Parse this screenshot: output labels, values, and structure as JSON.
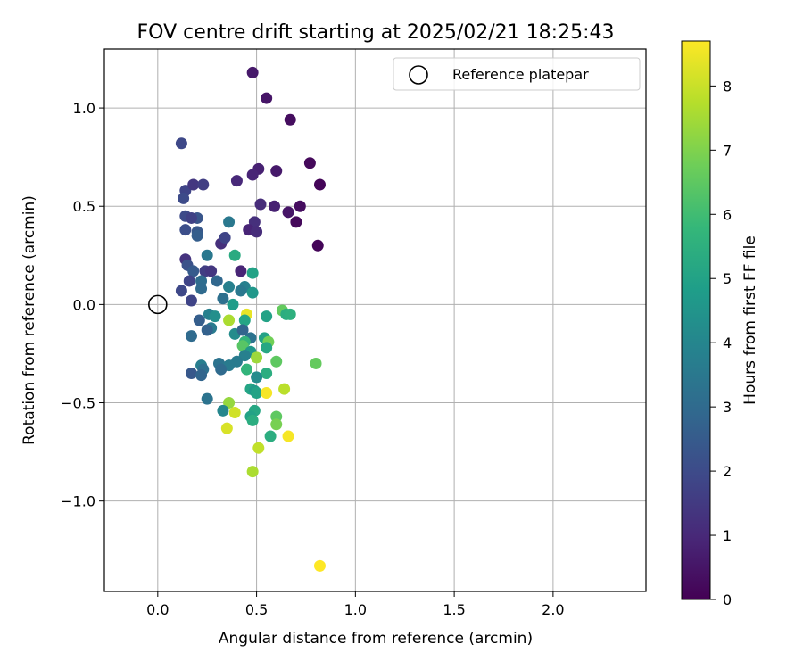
{
  "chart_data": {
    "type": "scatter",
    "title": "FOV centre drift starting at 2025/02/21 18:25:43",
    "xlabel": "Angular distance from reference (arcmin)",
    "ylabel": "Rotation from reference (arcmin)",
    "xlim": [
      -0.27,
      2.47
    ],
    "ylim": [
      -1.46,
      1.3
    ],
    "xticks": [
      "0.0",
      "0.5",
      "1.0",
      "1.5",
      "2.0"
    ],
    "xtick_values": [
      0,
      0.5,
      1.0,
      1.5,
      2.0
    ],
    "yticks": [
      "1.0",
      "0.5",
      "0.0",
      "−0.5",
      "−1.0"
    ],
    "ytick_values": [
      1.0,
      0.5,
      0.0,
      -0.5,
      -1.0
    ],
    "grid": true,
    "legend": {
      "position": "top-right",
      "entries": [
        "Reference platepar"
      ]
    },
    "colorbar": {
      "label": "Hours from first FF file",
      "range": [
        0,
        8.7
      ],
      "ticks": [
        "0",
        "1",
        "2",
        "3",
        "4",
        "5",
        "6",
        "7",
        "8"
      ],
      "tick_values": [
        0,
        1,
        2,
        3,
        4,
        5,
        6,
        7,
        8
      ],
      "colormap": "viridis",
      "colors": [
        "#440154",
        "#482878",
        "#3e4989",
        "#31688e",
        "#26828e",
        "#1f9e89",
        "#35b779",
        "#6ece58",
        "#b5de2b",
        "#fde725"
      ]
    },
    "reference_point": {
      "x": 0.0,
      "y": 0.0
    },
    "points": [
      {
        "x": 0.48,
        "y": 1.18,
        "h": 0.6
      },
      {
        "x": 0.55,
        "y": 1.05,
        "h": 0.5
      },
      {
        "x": 0.67,
        "y": 0.94,
        "h": 0.3
      },
      {
        "x": 0.77,
        "y": 0.72,
        "h": 0.2
      },
      {
        "x": 0.82,
        "y": 0.61,
        "h": 0.1
      },
      {
        "x": 0.51,
        "y": 0.69,
        "h": 0.8
      },
      {
        "x": 0.6,
        "y": 0.68,
        "h": 0.6
      },
      {
        "x": 0.48,
        "y": 0.66,
        "h": 0.9
      },
      {
        "x": 0.4,
        "y": 0.63,
        "h": 1.0
      },
      {
        "x": 0.72,
        "y": 0.5,
        "h": 0.3
      },
      {
        "x": 0.59,
        "y": 0.5,
        "h": 0.8
      },
      {
        "x": 0.66,
        "y": 0.47,
        "h": 0.5
      },
      {
        "x": 0.52,
        "y": 0.51,
        "h": 1.1
      },
      {
        "x": 0.7,
        "y": 0.42,
        "h": 0.2
      },
      {
        "x": 0.49,
        "y": 0.42,
        "h": 1.2
      },
      {
        "x": 0.46,
        "y": 0.38,
        "h": 0.9
      },
      {
        "x": 0.5,
        "y": 0.37,
        "h": 1.1
      },
      {
        "x": 0.81,
        "y": 0.3,
        "h": 0.1
      },
      {
        "x": 0.12,
        "y": 0.82,
        "h": 1.9
      },
      {
        "x": 0.14,
        "y": 0.58,
        "h": 1.8
      },
      {
        "x": 0.13,
        "y": 0.54,
        "h": 2.0
      },
      {
        "x": 0.18,
        "y": 0.61,
        "h": 1.4
      },
      {
        "x": 0.23,
        "y": 0.61,
        "h": 1.6
      },
      {
        "x": 0.14,
        "y": 0.45,
        "h": 2.0
      },
      {
        "x": 0.2,
        "y": 0.44,
        "h": 2.3
      },
      {
        "x": 0.17,
        "y": 0.44,
        "h": 1.7
      },
      {
        "x": 0.14,
        "y": 0.38,
        "h": 2.1
      },
      {
        "x": 0.2,
        "y": 0.37,
        "h": 2.4
      },
      {
        "x": 0.2,
        "y": 0.35,
        "h": 2.6
      },
      {
        "x": 0.32,
        "y": 0.31,
        "h": 1.2
      },
      {
        "x": 0.34,
        "y": 0.34,
        "h": 1.8
      },
      {
        "x": 0.36,
        "y": 0.42,
        "h": 3.5
      },
      {
        "x": 0.39,
        "y": 0.25,
        "h": 5.3
      },
      {
        "x": 0.14,
        "y": 0.23,
        "h": 1.3
      },
      {
        "x": 0.15,
        "y": 0.2,
        "h": 2.2
      },
      {
        "x": 0.18,
        "y": 0.17,
        "h": 2.5
      },
      {
        "x": 0.24,
        "y": 0.17,
        "h": 1.6
      },
      {
        "x": 0.27,
        "y": 0.17,
        "h": 1.4
      },
      {
        "x": 0.25,
        "y": 0.25,
        "h": 3.5
      },
      {
        "x": 0.42,
        "y": 0.17,
        "h": 0.9
      },
      {
        "x": 0.48,
        "y": 0.16,
        "h": 5.0
      },
      {
        "x": 0.16,
        "y": 0.12,
        "h": 1.8
      },
      {
        "x": 0.22,
        "y": 0.12,
        "h": 3.1
      },
      {
        "x": 0.3,
        "y": 0.12,
        "h": 2.9
      },
      {
        "x": 0.12,
        "y": 0.07,
        "h": 1.9
      },
      {
        "x": 0.22,
        "y": 0.08,
        "h": 3.0
      },
      {
        "x": 0.36,
        "y": 0.09,
        "h": 3.8
      },
      {
        "x": 0.44,
        "y": 0.09,
        "h": 3.8
      },
      {
        "x": 0.42,
        "y": 0.07,
        "h": 3.5
      },
      {
        "x": 0.48,
        "y": 0.06,
        "h": 4.6
      },
      {
        "x": 0.17,
        "y": 0.02,
        "h": 1.8
      },
      {
        "x": 0.33,
        "y": 0.03,
        "h": 3.2
      },
      {
        "x": 0.38,
        "y": 0.0,
        "h": 4.8
      },
      {
        "x": 0.26,
        "y": -0.05,
        "h": 3.8
      },
      {
        "x": 0.29,
        "y": -0.06,
        "h": 4.3
      },
      {
        "x": 0.21,
        "y": -0.08,
        "h": 2.6
      },
      {
        "x": 0.36,
        "y": -0.08,
        "h": 7.6
      },
      {
        "x": 0.45,
        "y": -0.05,
        "h": 8.4
      },
      {
        "x": 0.44,
        "y": -0.08,
        "h": 5.1
      },
      {
        "x": 0.27,
        "y": -0.12,
        "h": 3.6
      },
      {
        "x": 0.25,
        "y": -0.13,
        "h": 2.7
      },
      {
        "x": 0.39,
        "y": -0.15,
        "h": 4.2
      },
      {
        "x": 0.43,
        "y": -0.13,
        "h": 2.8
      },
      {
        "x": 0.47,
        "y": -0.17,
        "h": 3.3
      },
      {
        "x": 0.55,
        "y": -0.06,
        "h": 5.0
      },
      {
        "x": 0.63,
        "y": -0.03,
        "h": 6.6
      },
      {
        "x": 0.65,
        "y": -0.05,
        "h": 5.4
      },
      {
        "x": 0.67,
        "y": -0.05,
        "h": 5.5
      },
      {
        "x": 0.54,
        "y": -0.17,
        "h": 5.0
      },
      {
        "x": 0.56,
        "y": -0.19,
        "h": 6.8
      },
      {
        "x": 0.17,
        "y": -0.16,
        "h": 3.0
      },
      {
        "x": 0.44,
        "y": -0.19,
        "h": 5.7
      },
      {
        "x": 0.43,
        "y": -0.21,
        "h": 6.4
      },
      {
        "x": 0.47,
        "y": -0.24,
        "h": 4.6
      },
      {
        "x": 0.55,
        "y": -0.22,
        "h": 5.2
      },
      {
        "x": 0.5,
        "y": -0.27,
        "h": 7.4
      },
      {
        "x": 0.44,
        "y": -0.26,
        "h": 3.8
      },
      {
        "x": 0.4,
        "y": -0.29,
        "h": 3.6
      },
      {
        "x": 0.6,
        "y": -0.29,
        "h": 6.5
      },
      {
        "x": 0.8,
        "y": -0.3,
        "h": 6.6
      },
      {
        "x": 0.31,
        "y": -0.3,
        "h": 3.3
      },
      {
        "x": 0.36,
        "y": -0.31,
        "h": 3.6
      },
      {
        "x": 0.22,
        "y": -0.31,
        "h": 3.7
      },
      {
        "x": 0.23,
        "y": -0.33,
        "h": 3.2
      },
      {
        "x": 0.32,
        "y": -0.33,
        "h": 3.0
      },
      {
        "x": 0.17,
        "y": -0.35,
        "h": 2.4
      },
      {
        "x": 0.22,
        "y": -0.36,
        "h": 2.8
      },
      {
        "x": 0.45,
        "y": -0.33,
        "h": 5.7
      },
      {
        "x": 0.55,
        "y": -0.35,
        "h": 5.4
      },
      {
        "x": 0.5,
        "y": -0.37,
        "h": 4.2
      },
      {
        "x": 0.47,
        "y": -0.43,
        "h": 5.1
      },
      {
        "x": 0.49,
        "y": -0.44,
        "h": 4.7
      },
      {
        "x": 0.5,
        "y": -0.45,
        "h": 5.0
      },
      {
        "x": 0.55,
        "y": -0.45,
        "h": 8.6
      },
      {
        "x": 0.64,
        "y": -0.43,
        "h": 7.8
      },
      {
        "x": 0.25,
        "y": -0.48,
        "h": 3.3
      },
      {
        "x": 0.36,
        "y": -0.5,
        "h": 7.3
      },
      {
        "x": 0.33,
        "y": -0.54,
        "h": 4.0
      },
      {
        "x": 0.39,
        "y": -0.55,
        "h": 8.1
      },
      {
        "x": 0.49,
        "y": -0.54,
        "h": 5.2
      },
      {
        "x": 0.47,
        "y": -0.57,
        "h": 5.0
      },
      {
        "x": 0.48,
        "y": -0.59,
        "h": 5.4
      },
      {
        "x": 0.6,
        "y": -0.57,
        "h": 6.5
      },
      {
        "x": 0.6,
        "y": -0.61,
        "h": 6.9
      },
      {
        "x": 0.35,
        "y": -0.63,
        "h": 8.2
      },
      {
        "x": 0.57,
        "y": -0.67,
        "h": 5.4
      },
      {
        "x": 0.66,
        "y": -0.67,
        "h": 8.6
      },
      {
        "x": 0.51,
        "y": -0.73,
        "h": 7.9
      },
      {
        "x": 0.48,
        "y": -0.85,
        "h": 7.6
      },
      {
        "x": 0.82,
        "y": -1.33,
        "h": 8.7
      }
    ]
  }
}
